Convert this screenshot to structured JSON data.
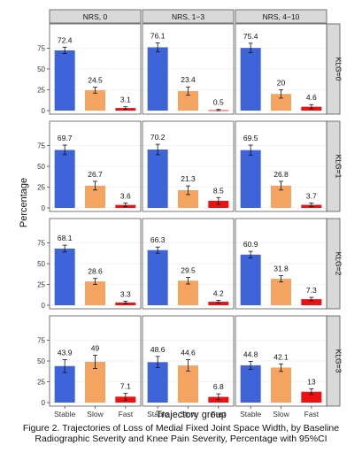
{
  "caption_line1": "Figure 2. Trajectories of Loss of Medial Fixed Joint Space Width, by Baseline",
  "caption_line2": "Radiographic Severity and Knee Pain Severity, Percentage with 95%CI",
  "chart_data": {
    "type": "bar",
    "xlabel": "Trajectory group",
    "ylabel": "Percentage",
    "ylim": [
      0,
      100
    ],
    "yticks": [
      0,
      25,
      50,
      75
    ],
    "categories": [
      "Stable",
      "Slow",
      "Fast"
    ],
    "colors": {
      "Stable": "#3f63d9",
      "Slow": "#f4a460",
      "Fast": "#ee1111"
    },
    "strip_bg": "#d9d9d9",
    "columns": [
      "NRS, 0",
      "NRS, 1−3",
      "NRS, 4−10"
    ],
    "rows": [
      "KLG=0",
      "KLG=1",
      "KLG=2",
      "KLG=3"
    ],
    "panels": [
      [
        {
          "values": [
            72.4,
            24.5,
            3.1
          ],
          "labels": [
            "72.4",
            "24.5",
            "3.1"
          ],
          "ci": [
            [
              68.5,
              76.3
            ],
            [
              21.0,
              28.0
            ],
            [
              1.8,
              4.6
            ]
          ]
        },
        {
          "values": [
            76.1,
            23.4,
            0.5
          ],
          "labels": [
            "76.1",
            "23.4",
            "0.5"
          ],
          "ci": [
            [
              70.5,
              81.5
            ],
            [
              18.5,
              28.5
            ],
            [
              0.0,
              1.4
            ]
          ]
        },
        {
          "values": [
            75.4,
            20,
            4.6
          ],
          "labels": [
            "75.4",
            "20",
            "4.6"
          ],
          "ci": [
            [
              69.5,
              81.0
            ],
            [
              15.0,
              25.0
            ],
            [
              2.2,
              7.2
            ]
          ]
        }
      ],
      [
        {
          "values": [
            69.7,
            26.7,
            3.6
          ],
          "labels": [
            "69.7",
            "26.7",
            "3.6"
          ],
          "ci": [
            [
              64.0,
              75.5
            ],
            [
              21.5,
              32.0
            ],
            [
              1.5,
              6.0
            ]
          ]
        },
        {
          "values": [
            70.2,
            21.3,
            8.5
          ],
          "labels": [
            "70.2",
            "21.3",
            "8.5"
          ],
          "ci": [
            [
              64.0,
              76.5
            ],
            [
              16.0,
              26.5
            ],
            [
              4.5,
              12.5
            ]
          ]
        },
        {
          "values": [
            69.5,
            26.8,
            3.7
          ],
          "labels": [
            "69.5",
            "26.8",
            "3.7"
          ],
          "ci": [
            [
              63.5,
              75.5
            ],
            [
              21.5,
              32.0
            ],
            [
              1.5,
              6.0
            ]
          ]
        }
      ],
      [
        {
          "values": [
            68.1,
            28.6,
            3.3
          ],
          "labels": [
            "68.1",
            "28.6",
            "3.3"
          ],
          "ci": [
            [
              64.0,
              72.2
            ],
            [
              25.0,
              32.2
            ],
            [
              2.0,
              4.8
            ]
          ]
        },
        {
          "values": [
            66.3,
            29.5,
            4.2
          ],
          "labels": [
            "66.3",
            "29.5",
            "4.2"
          ],
          "ci": [
            [
              62.5,
              70.0
            ],
            [
              25.5,
              33.5
            ],
            [
              2.5,
              6.0
            ]
          ]
        },
        {
          "values": [
            60.9,
            31.8,
            7.3
          ],
          "labels": [
            "60.9",
            "31.8",
            "7.3"
          ],
          "ci": [
            [
              57.0,
              64.8
            ],
            [
              28.0,
              35.5
            ],
            [
              5.2,
              9.5
            ]
          ]
        }
      ],
      [
        {
          "values": [
            43.9,
            49,
            7.1
          ],
          "labels": [
            "43.9",
            "49",
            "7.1"
          ],
          "ci": [
            [
              36.0,
              51.5
            ],
            [
              41.0,
              57.0
            ],
            [
              3.0,
              11.0
            ]
          ]
        },
        {
          "values": [
            48.6,
            44.6,
            6.8
          ],
          "labels": [
            "48.6",
            "44.6",
            "6.8"
          ],
          "ci": [
            [
              42.0,
              55.5
            ],
            [
              38.0,
              51.5
            ],
            [
              3.5,
              10.5
            ]
          ]
        },
        {
          "values": [
            44.8,
            42.1,
            13
          ],
          "labels": [
            "44.8",
            "42.1",
            "13"
          ],
          "ci": [
            [
              40.0,
              49.5
            ],
            [
              37.5,
              46.5
            ],
            [
              9.8,
              16.5
            ]
          ]
        }
      ]
    ]
  }
}
